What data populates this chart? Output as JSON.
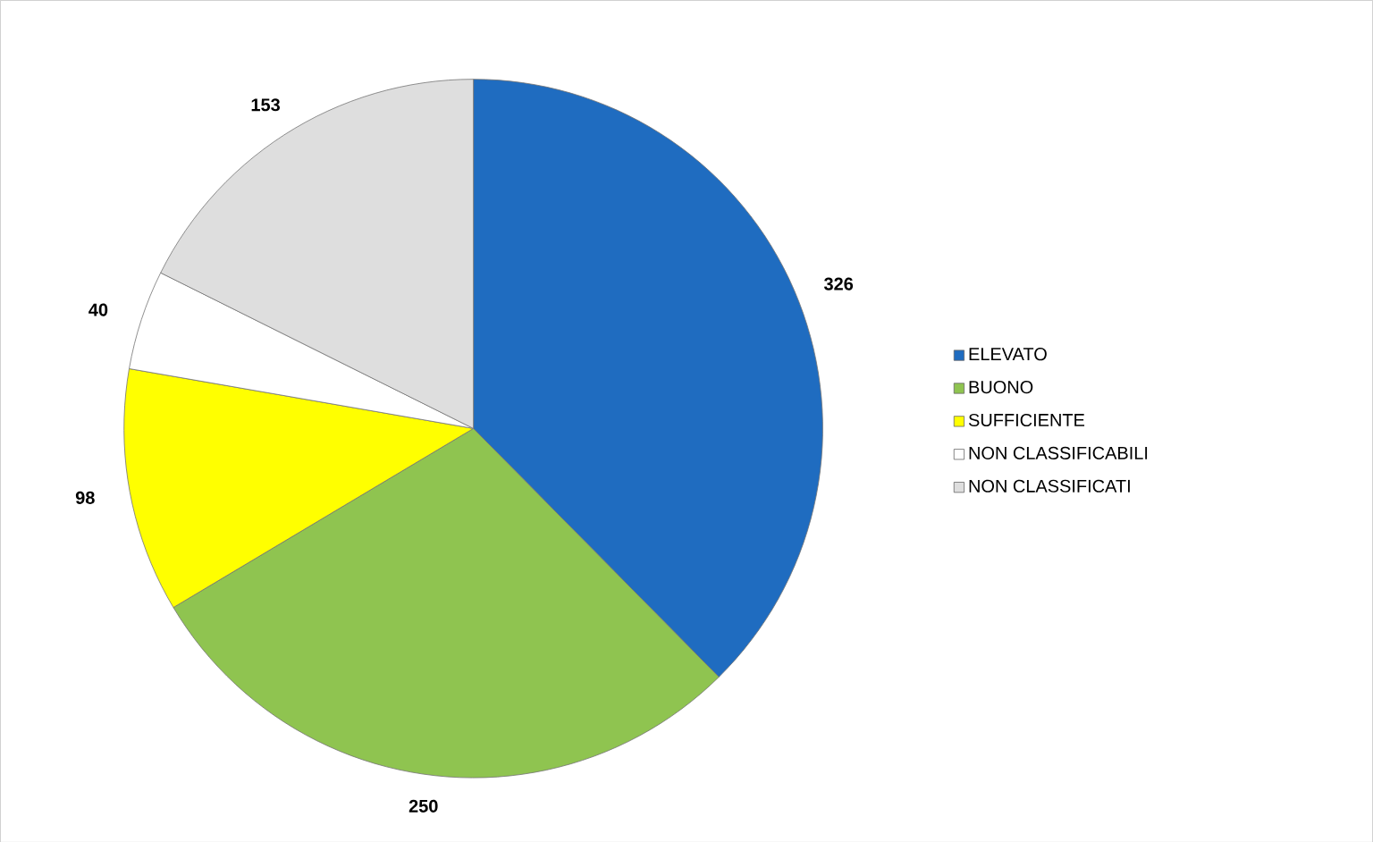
{
  "chart_data": {
    "type": "pie",
    "categories": [
      "ELEVATO",
      "BUONO",
      "SUFFICIENTE",
      "NON CLASSIFICABILI",
      "NON CLASSIFICATI"
    ],
    "values": [
      326,
      250,
      98,
      40,
      153
    ],
    "colors": [
      "#1f6cc0",
      "#8fc450",
      "#ffff00",
      "#ffffff",
      "#dedede"
    ],
    "data_labels": true,
    "legend": "right"
  }
}
